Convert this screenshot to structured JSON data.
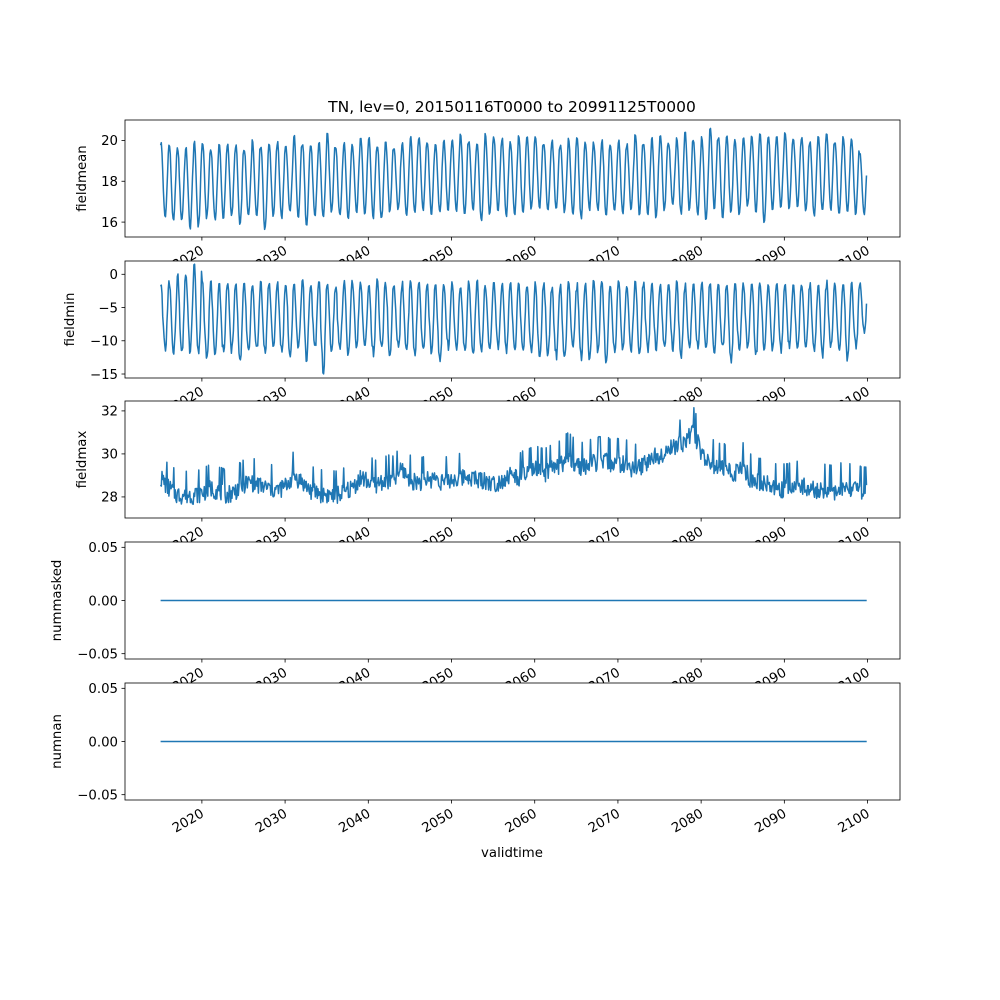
{
  "chart_data": {
    "type": "line",
    "title": "TN, lev=0, 20150116T0000 to 20991125T0000",
    "xlabel": "validtime",
    "x_start_year": 2015,
    "x_end_year": 2099,
    "xlim": [
      2010.76,
      2103.9
    ],
    "x_ticks": [
      "2020",
      "2030",
      "2040",
      "2050",
      "2060",
      "2070",
      "2080",
      "2090",
      "2100"
    ],
    "line_color": "#1f77b4",
    "panels": [
      {
        "ylabel": "fieldmean",
        "ylim": [
          15.27,
          21.0
        ],
        "y_ticks": [
          "16",
          "18",
          "20"
        ],
        "seasonal": true,
        "annual_max": [
          19.9,
          19.8,
          19.6,
          19.6,
          19.9,
          19.9,
          19.6,
          19.8,
          19.8,
          19.8,
          19.6,
          20.0,
          19.8,
          19.9,
          19.9,
          19.8,
          20.2,
          19.9,
          19.8,
          19.9,
          20.3,
          19.7,
          19.9,
          19.8,
          20.2,
          20.1,
          19.8,
          20.0,
          19.7,
          19.9,
          20.2,
          20.1,
          19.9,
          19.8,
          20.0,
          20.1,
          20.3,
          20.0,
          19.9,
          20.3,
          20.2,
          20.1,
          19.9,
          20.2,
          20.3,
          20.2,
          19.9,
          20.0,
          19.8,
          20.1,
          20.1,
          19.9,
          19.9,
          20.0,
          19.8,
          20.0,
          19.8,
          20.4,
          19.8,
          20.1,
          20.3,
          19.9,
          20.1,
          20.4,
          20.0,
          20.2,
          20.7,
          20.2,
          20.2,
          20.0,
          20.1,
          20.3,
          20.3,
          20.2,
          20.2,
          20.4,
          20.1,
          20.2,
          20.0,
          20.3,
          20.3,
          20.0,
          20.2,
          20.1,
          19.4
        ],
        "annual_min": [
          16.2,
          16.0,
          16.1,
          15.7,
          15.8,
          16.2,
          16.1,
          16.2,
          16.3,
          15.8,
          16.3,
          16.3,
          15.6,
          16.3,
          16.2,
          16.5,
          16.2,
          15.9,
          16.2,
          16.2,
          16.5,
          16.3,
          16.2,
          16.5,
          16.4,
          16.2,
          16.1,
          16.5,
          16.6,
          16.3,
          16.4,
          16.6,
          16.4,
          16.5,
          16.6,
          16.5,
          16.3,
          16.6,
          16.1,
          16.4,
          16.6,
          16.3,
          16.3,
          16.4,
          16.6,
          16.7,
          16.5,
          16.6,
          16.5,
          16.4,
          16.2,
          16.6,
          16.6,
          16.3,
          16.5,
          16.4,
          16.6,
          16.4,
          16.4,
          16.2,
          16.6,
          16.8,
          16.4,
          16.6,
          16.4,
          16.1,
          16.6,
          16.2,
          16.5,
          16.4,
          16.8,
          16.5,
          15.9,
          16.6,
          16.7,
          16.7,
          16.8,
          16.6,
          16.3,
          16.5,
          16.6,
          16.3,
          16.4,
          16.4,
          16.4
        ]
      },
      {
        "ylabel": "fieldmin",
        "ylim": [
          -15.6,
          2.0
        ],
        "y_ticks": [
          "-15",
          "-10",
          "-5",
          "0"
        ],
        "seasonal": true,
        "annual_max": [
          -1.3,
          -1.2,
          0.2,
          -0.3,
          1.3,
          -1.2,
          -1.3,
          -1.6,
          -1.4,
          -1.5,
          -1.4,
          -1.6,
          -1.2,
          -1.5,
          -1.0,
          -1.6,
          -1.3,
          -0.8,
          -1.4,
          -1.2,
          -1.5,
          -1.8,
          -0.9,
          -1.0,
          -1.4,
          -1.6,
          -0.8,
          -1.4,
          -1.7,
          -1.3,
          -1.1,
          -1.2,
          -1.5,
          -1.5,
          -1.6,
          -1.3,
          -1.9,
          -1.3,
          -1.0,
          -1.8,
          -1.2,
          -1.5,
          -1.4,
          -1.6,
          -1.7,
          -1.3,
          -1.4,
          -1.9,
          -1.3,
          -1.4,
          -1.5,
          -1.7,
          -1.2,
          -1.4,
          -1.6,
          -1.3,
          -1.9,
          -1.0,
          -1.4,
          -1.2,
          -1.7,
          -1.4,
          -1.2,
          -1.5,
          -1.3,
          -1.3,
          -1.6,
          -1.4,
          -1.7,
          -1.2,
          -1.5,
          -1.3,
          -1.4,
          -1.6,
          -1.1,
          -1.8,
          -1.4,
          -1.5,
          -1.5,
          -1.4,
          -1.2,
          -1.5,
          -1.6,
          -1.4,
          -1.3
        ],
        "annual_min": [
          -11.6,
          -12.0,
          -12.3,
          -11.6,
          -12.8,
          -12.9,
          -12.5,
          -12.1,
          -11.8,
          -13.2,
          -11.8,
          -11.7,
          -12.6,
          -11.0,
          -12.2,
          -12.8,
          -11.6,
          -12.8,
          -11.4,
          -15.0,
          -11.7,
          -11.5,
          -12.3,
          -10.9,
          -11.2,
          -12.5,
          -11.6,
          -12.3,
          -11.4,
          -11.7,
          -12.5,
          -11.6,
          -12.1,
          -13.6,
          -11.3,
          -11.7,
          -11.7,
          -12.3,
          -12.1,
          -11.7,
          -11.4,
          -11.7,
          -11.6,
          -11.6,
          -11.8,
          -12.5,
          -12.5,
          -12.7,
          -13.0,
          -11.3,
          -12.9,
          -13.0,
          -11.5,
          -13.2,
          -11.8,
          -11.3,
          -11.5,
          -12.1,
          -11.6,
          -11.4,
          -11.4,
          -11.5,
          -12.9,
          -11.3,
          -11.5,
          -11.5,
          -11.9,
          -11.6,
          -13.5,
          -11.5,
          -11.3,
          -12.5,
          -11.4,
          -11.6,
          -12.1,
          -11.3,
          -11.3,
          -11.5,
          -11.7,
          -12.3,
          -11.2,
          -11.6,
          -12.8,
          -11.2,
          -9.0
        ]
      },
      {
        "ylabel": "fieldmax",
        "ylim": [
          27.02,
          32.46
        ],
        "y_ticks": [
          "28",
          "30",
          "32"
        ],
        "seasonal": false,
        "annual_level": [
          28.8,
          28.3,
          28.0,
          28.0,
          28.0,
          28.1,
          28.3,
          28.2,
          28.0,
          28.2,
          28.5,
          28.6,
          28.4,
          28.3,
          28.2,
          28.4,
          28.9,
          28.6,
          28.2,
          28.1,
          28.0,
          28.0,
          28.1,
          28.3,
          28.8,
          28.6,
          28.5,
          28.7,
          28.7,
          29.2,
          28.7,
          28.6,
          28.7,
          28.8,
          28.6,
          28.7,
          28.8,
          28.9,
          28.7,
          28.7,
          28.5,
          28.7,
          28.9,
          28.8,
          29.0,
          29.2,
          29.0,
          29.2,
          29.4,
          29.8,
          29.4,
          29.3,
          29.5,
          29.6,
          29.5,
          29.5,
          29.4,
          29.2,
          29.4,
          29.7,
          29.9,
          30.1,
          30.3,
          30.5,
          31.0,
          30.0,
          29.5,
          29.3,
          29.2,
          29.0,
          29.3,
          28.7,
          28.6,
          28.5,
          28.3,
          28.3,
          28.4,
          28.5,
          28.3,
          28.2,
          28.3,
          28.2,
          28.4,
          28.3,
          28.2
        ]
      },
      {
        "ylabel": "nummasked",
        "ylim": [
          -0.055,
          0.055
        ],
        "y_ticks": [
          "-0.05",
          "0.00",
          "0.05"
        ],
        "constant": 0
      },
      {
        "ylabel": "numnan",
        "ylim": [
          -0.055,
          0.055
        ],
        "y_ticks": [
          "-0.05",
          "0.00",
          "0.05"
        ],
        "constant": 0
      }
    ]
  }
}
